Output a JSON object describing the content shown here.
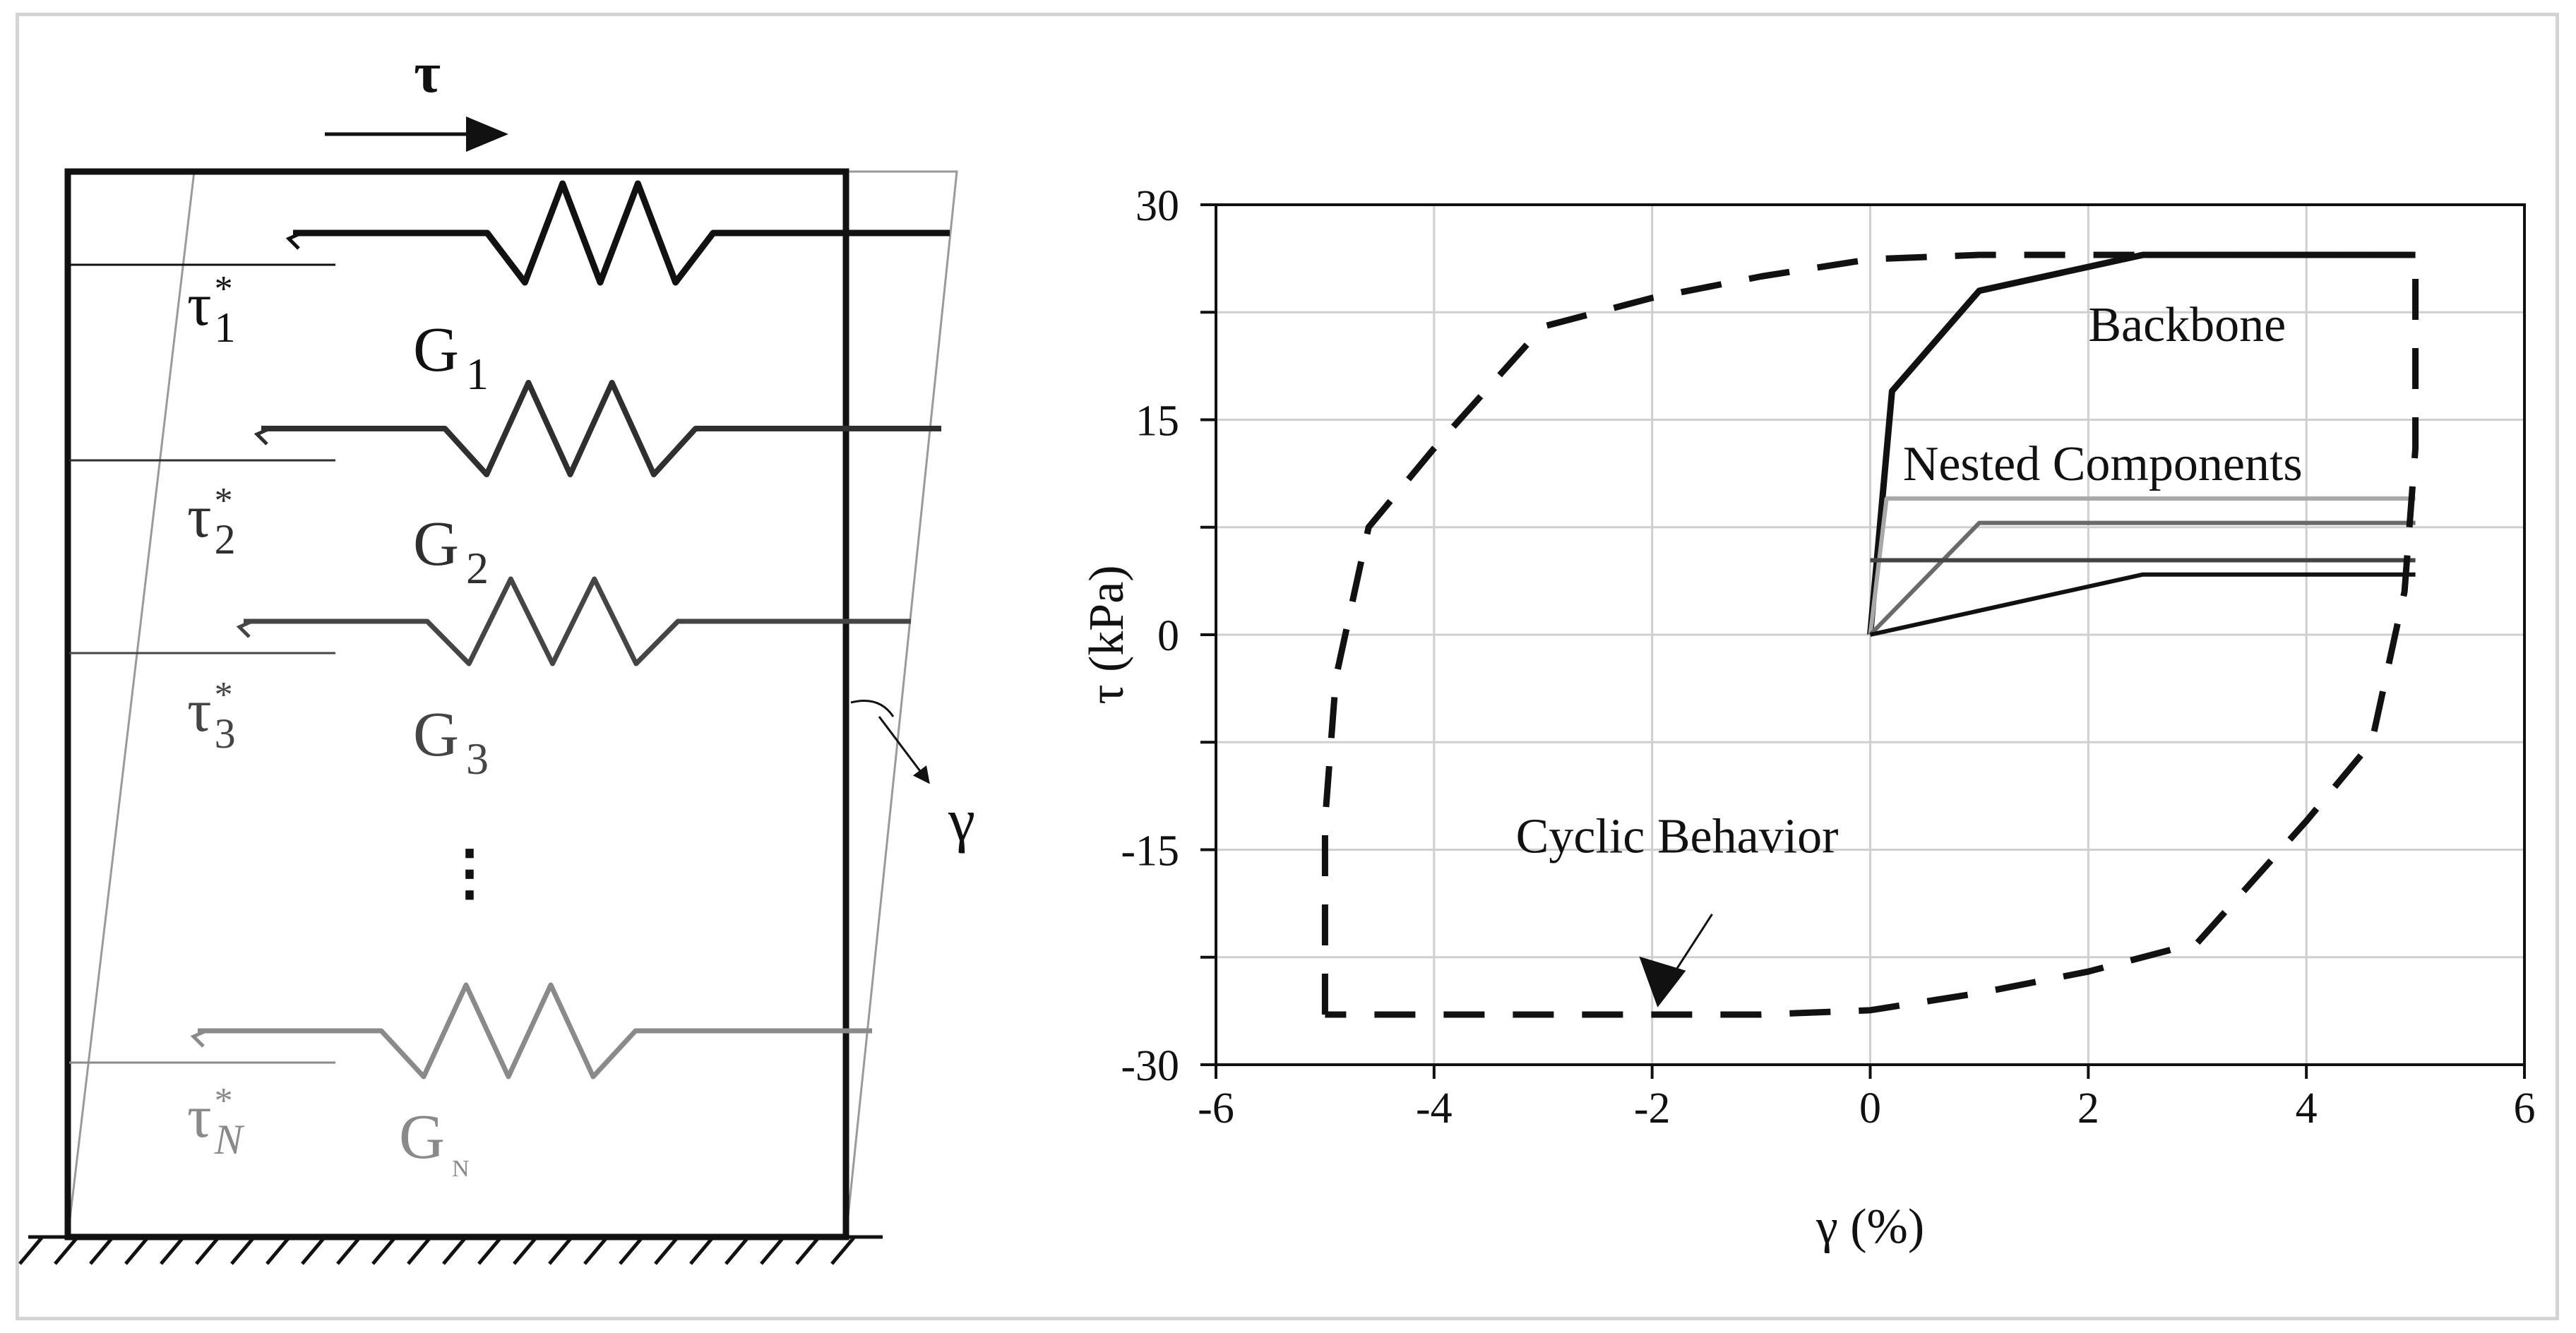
{
  "model": {
    "applied_stress": "τ",
    "strain": "γ",
    "dots": "⋮",
    "springs": [
      {
        "tau": "τ",
        "tau_sub": "1",
        "g": "G",
        "g_sub": "1",
        "color": "#111111"
      },
      {
        "tau": "τ",
        "tau_sub": "2",
        "g": "G",
        "g_sub": "2",
        "color": "#2f2f2f"
      },
      {
        "tau": "τ",
        "tau_sub": "3",
        "g": "G",
        "g_sub": "3",
        "color": "#454545"
      },
      {
        "tau": "τ",
        "tau_sub": "N",
        "g": "G",
        "g_sub": "N",
        "color": "#8a8a8a"
      }
    ],
    "star": "*"
  },
  "chart_data": {
    "type": "line",
    "xlabel": "γ (%)",
    "ylabel": "τ (kPa)",
    "xlim": [
      -6,
      6
    ],
    "ylim": [
      -30,
      30
    ],
    "xticks": [
      -6,
      -4,
      -2,
      0,
      2,
      4,
      6
    ],
    "yticks": [
      -30,
      -15,
      0,
      15,
      30
    ],
    "grid": true,
    "annotations": [
      "Backbone",
      "Nested Components",
      "Cyclic Behavior"
    ],
    "series": [
      {
        "name": "Backbone",
        "style": "solid",
        "color": "#111111",
        "x": [
          0,
          0.2,
          1.0,
          2.5,
          5.0
        ],
        "y": [
          0,
          17,
          24,
          26.5,
          26.5
        ]
      },
      {
        "name": "Nested Components",
        "style": "solid",
        "color": "#a8a8a8",
        "x": [
          0,
          0.15,
          5.0
        ],
        "y": [
          0,
          9.5,
          9.5
        ]
      },
      {
        "name": "Nested Components",
        "style": "solid",
        "color": "#6a6a6a",
        "x": [
          0,
          1.0,
          5.0
        ],
        "y": [
          0,
          7.8,
          7.8
        ]
      },
      {
        "name": "Nested Components",
        "style": "solid",
        "color": "#444444",
        "x": [
          0,
          5.0
        ],
        "y": [
          5.2,
          5.2
        ]
      },
      {
        "name": "Nested Components",
        "style": "solid",
        "color": "#111111",
        "x": [
          0,
          2.5,
          5.0
        ],
        "y": [
          0,
          4.2,
          4.2
        ]
      },
      {
        "name": "Cyclic Behavior",
        "style": "dashed",
        "color": "#111111",
        "x": [
          -5.0,
          -5.0,
          -4.9,
          -4.6,
          -4.0,
          -3.0,
          -2.0,
          -1.0,
          0,
          1.0,
          2.0,
          2.5,
          5.0,
          5.0,
          4.9,
          4.6,
          4.0,
          3.0,
          2.0,
          1.0,
          0,
          -1.0,
          -2.0,
          -3.0,
          -5.0
        ],
        "y": [
          -26.5,
          -13,
          -3,
          7.5,
          13,
          21.5,
          23.5,
          25,
          26.2,
          26.5,
          26.5,
          26.5,
          26.5,
          13,
          3,
          -7.5,
          -13,
          -21.5,
          -23.5,
          -25,
          -26.2,
          -26.5,
          -26.5,
          -26.5,
          -26.5
        ]
      }
    ]
  }
}
